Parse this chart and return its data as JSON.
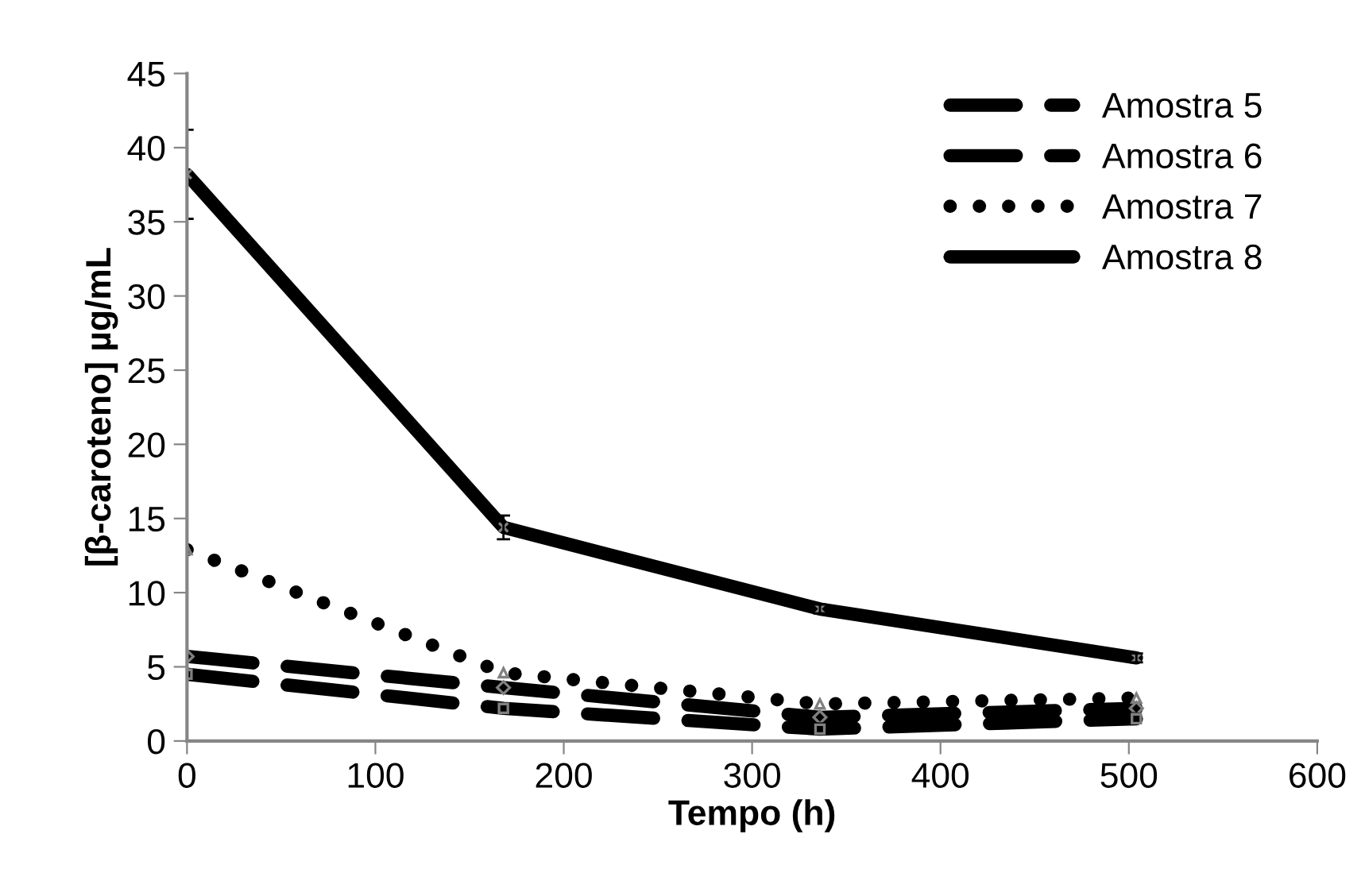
{
  "chart_data": {
    "type": "line",
    "xlabel": "Tempo (h)",
    "ylabel": "[β-caroteno] µg/mL",
    "x": [
      0,
      168,
      336,
      504
    ],
    "series": [
      {
        "name": "Amostra 5",
        "color": "#000000",
        "line_style": "dashed",
        "marker": "diamond",
        "values": [
          5.7,
          3.6,
          1.6,
          2.2
        ]
      },
      {
        "name": "Amostra 6",
        "color": "#000000",
        "line_style": "dashed",
        "marker": "square",
        "values": [
          4.5,
          2.2,
          0.8,
          1.5
        ]
      },
      {
        "name": "Amostra 7",
        "color": "#000000",
        "line_style": "dotted",
        "marker": "triangle",
        "values": [
          12.9,
          4.6,
          2.5,
          2.9
        ]
      },
      {
        "name": "Amostra 8",
        "color": "#000000",
        "line_style": "solid",
        "marker": "cross",
        "values": [
          38.2,
          14.4,
          8.9,
          5.6
        ],
        "errors": [
          3,
          0.8,
          0.3,
          0.3
        ]
      }
    ],
    "xlim": [
      0,
      600
    ],
    "xticks": [
      0,
      100,
      200,
      300,
      400,
      500,
      600
    ],
    "ylim": [
      0,
      45
    ],
    "yticks": [
      0,
      5,
      10,
      15,
      20,
      25,
      30,
      35,
      40,
      45
    ],
    "grid": false,
    "legend": "top right"
  }
}
